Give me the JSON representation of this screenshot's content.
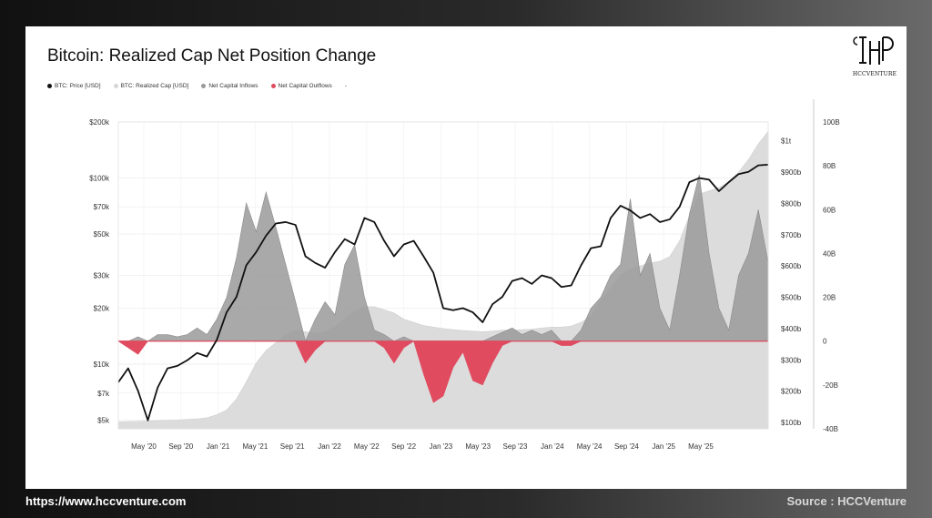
{
  "footer": {
    "website": "https://www.hccventure.com",
    "source": "Source : HCCVenture"
  },
  "logo": {
    "text": "HCCVENTURE"
  },
  "colors": {
    "price": "#111111",
    "realized_cap": "#dcdcdc",
    "inflows": "#9a9a9a",
    "outflows": "#e04b60"
  },
  "chart_data": {
    "type": "line",
    "title": "Bitcoin: Realized Cap Net Position Change",
    "legend": {
      "placement": "top-left",
      "items": [
        {
          "label": "BTC: Price [USD]",
          "color": "#111111"
        },
        {
          "label": "BTC: Realized Cap [USD]",
          "color": "#d6d6d6"
        },
        {
          "label": "Net Capital Inflows",
          "color": "#9a9a9a"
        },
        {
          "label": "Net Capital Outflows",
          "color": "#e04b60"
        },
        {
          "label": "-",
          "color": ""
        }
      ]
    },
    "x_ticks": [
      "May '20",
      "Sep '20",
      "Jan '21",
      "May '21",
      "Sep '21",
      "Jan '22",
      "May '22",
      "Sep '22",
      "Jan '23",
      "May '23",
      "Sep '23",
      "Jan '24",
      "May '24",
      "Sep '24",
      "Jan '25",
      "May '25"
    ],
    "axes": {
      "price": {
        "scale": "log",
        "range": [
          4500,
          200000
        ],
        "ticks": [
          "$5k",
          "$7k",
          "$10k",
          "$20k",
          "$30k",
          "$50k",
          "$70k",
          "$100k",
          "$200k"
        ]
      },
      "realized_cap": {
        "scale": "linear",
        "range": [
          80,
          1060
        ],
        "ticks": [
          "$100b",
          "$200b",
          "$300b",
          "$400b",
          "$500b",
          "$600b",
          "$700b",
          "$800b",
          "$900b",
          "$1t"
        ]
      },
      "net_position_change": {
        "scale": "linear",
        "range": [
          -40,
          100
        ],
        "ticks": [
          "-40B",
          "-20B",
          "0",
          "20B",
          "40B",
          "60B",
          "80B",
          "100B"
        ]
      }
    },
    "grid": "horizontal",
    "series": [
      {
        "name": "BTC: Price [USD]",
        "axis": "price",
        "points": [
          [
            0,
            8000
          ],
          [
            1,
            9500
          ],
          [
            2,
            7200
          ],
          [
            3,
            5000
          ],
          [
            4,
            7500
          ],
          [
            5,
            9500
          ],
          [
            6,
            9800
          ],
          [
            7,
            10500
          ],
          [
            8,
            11500
          ],
          [
            9,
            11000
          ],
          [
            10,
            13500
          ],
          [
            11,
            19000
          ],
          [
            12,
            23000
          ],
          [
            13,
            34000
          ],
          [
            14,
            40000
          ],
          [
            15,
            49000
          ],
          [
            16,
            57000
          ],
          [
            17,
            58000
          ],
          [
            18,
            56000
          ],
          [
            19,
            38000
          ],
          [
            20,
            35000
          ],
          [
            21,
            33000
          ],
          [
            22,
            40000
          ],
          [
            23,
            47000
          ],
          [
            24,
            44000
          ],
          [
            25,
            61000
          ],
          [
            26,
            58000
          ],
          [
            27,
            46000
          ],
          [
            28,
            38000
          ],
          [
            29,
            44000
          ],
          [
            30,
            46000
          ],
          [
            31,
            38000
          ],
          [
            32,
            31000
          ],
          [
            33,
            20000
          ],
          [
            34,
            19500
          ],
          [
            35,
            20000
          ],
          [
            36,
            19000
          ],
          [
            37,
            16800
          ],
          [
            38,
            21000
          ],
          [
            39,
            23000
          ],
          [
            40,
            28000
          ],
          [
            41,
            29000
          ],
          [
            42,
            27000
          ],
          [
            43,
            30000
          ],
          [
            44,
            29000
          ],
          [
            45,
            26000
          ],
          [
            46,
            26500
          ],
          [
            47,
            34000
          ],
          [
            48,
            42000
          ],
          [
            49,
            43000
          ],
          [
            50,
            61000
          ],
          [
            51,
            71000
          ],
          [
            52,
            67000
          ],
          [
            53,
            61000
          ],
          [
            54,
            64000
          ],
          [
            55,
            58000
          ],
          [
            56,
            60000
          ],
          [
            57,
            70000
          ],
          [
            58,
            95000
          ],
          [
            59,
            100000
          ],
          [
            60,
            98000
          ],
          [
            61,
            85000
          ],
          [
            62,
            95000
          ],
          [
            63,
            105000
          ],
          [
            64,
            108000
          ],
          [
            65,
            117000
          ],
          [
            66,
            118000
          ]
        ]
      },
      {
        "name": "BTC: Realized Cap [USD]",
        "axis": "realized_cap",
        "points": [
          [
            0,
            102
          ],
          [
            1,
            103
          ],
          [
            2,
            104
          ],
          [
            3,
            105
          ],
          [
            4,
            106
          ],
          [
            5,
            107
          ],
          [
            6,
            108
          ],
          [
            7,
            110
          ],
          [
            8,
            112
          ],
          [
            9,
            115
          ],
          [
            10,
            125
          ],
          [
            11,
            140
          ],
          [
            12,
            175
          ],
          [
            13,
            230
          ],
          [
            14,
            290
          ],
          [
            15,
            330
          ],
          [
            16,
            355
          ],
          [
            17,
            380
          ],
          [
            18,
            395
          ],
          [
            19,
            390
          ],
          [
            20,
            385
          ],
          [
            21,
            390
          ],
          [
            22,
            405
          ],
          [
            23,
            430
          ],
          [
            24,
            455
          ],
          [
            25,
            470
          ],
          [
            26,
            470
          ],
          [
            27,
            460
          ],
          [
            28,
            450
          ],
          [
            29,
            430
          ],
          [
            30,
            420
          ],
          [
            31,
            410
          ],
          [
            32,
            405
          ],
          [
            33,
            400
          ],
          [
            34,
            397
          ],
          [
            35,
            394
          ],
          [
            36,
            392
          ],
          [
            37,
            390
          ],
          [
            38,
            392
          ],
          [
            39,
            395
          ],
          [
            40,
            395
          ],
          [
            41,
            397
          ],
          [
            42,
            398
          ],
          [
            43,
            402
          ],
          [
            44,
            405
          ],
          [
            45,
            405
          ],
          [
            46,
            408
          ],
          [
            47,
            420
          ],
          [
            48,
            440
          ],
          [
            49,
            490
          ],
          [
            50,
            530
          ],
          [
            51,
            570
          ],
          [
            52,
            590
          ],
          [
            53,
            600
          ],
          [
            54,
            610
          ],
          [
            55,
            615
          ],
          [
            56,
            630
          ],
          [
            57,
            680
          ],
          [
            58,
            760
          ],
          [
            59,
            830
          ],
          [
            60,
            840
          ],
          [
            61,
            850
          ],
          [
            62,
            870
          ],
          [
            63,
            900
          ],
          [
            64,
            940
          ],
          [
            65,
            990
          ],
          [
            66,
            1030
          ]
        ]
      },
      {
        "name": "Net Capital Inflows",
        "axis": "net_position_change",
        "points": [
          [
            0,
            0
          ],
          [
            1,
            0
          ],
          [
            2,
            2
          ],
          [
            3,
            0
          ],
          [
            4,
            3
          ],
          [
            5,
            3
          ],
          [
            6,
            2
          ],
          [
            7,
            3
          ],
          [
            8,
            6
          ],
          [
            9,
            3
          ],
          [
            10,
            10
          ],
          [
            11,
            20
          ],
          [
            12,
            38
          ],
          [
            13,
            63
          ],
          [
            14,
            50
          ],
          [
            15,
            68
          ],
          [
            16,
            52
          ],
          [
            17,
            35
          ],
          [
            18,
            18
          ],
          [
            19,
            0
          ],
          [
            20,
            10
          ],
          [
            21,
            18
          ],
          [
            22,
            12
          ],
          [
            23,
            35
          ],
          [
            24,
            44
          ],
          [
            25,
            20
          ],
          [
            26,
            5
          ],
          [
            27,
            3
          ],
          [
            28,
            0
          ],
          [
            29,
            2
          ],
          [
            30,
            0
          ],
          [
            31,
            0
          ],
          [
            32,
            0
          ],
          [
            33,
            0
          ],
          [
            34,
            0
          ],
          [
            35,
            0
          ],
          [
            36,
            0
          ],
          [
            37,
            0
          ],
          [
            38,
            2
          ],
          [
            39,
            4
          ],
          [
            40,
            6
          ],
          [
            41,
            3
          ],
          [
            42,
            5
          ],
          [
            43,
            3
          ],
          [
            44,
            5
          ],
          [
            45,
            0
          ],
          [
            46,
            0
          ],
          [
            47,
            5
          ],
          [
            48,
            15
          ],
          [
            49,
            20
          ],
          [
            50,
            30
          ],
          [
            51,
            35
          ],
          [
            52,
            65
          ],
          [
            53,
            30
          ],
          [
            54,
            40
          ],
          [
            55,
            15
          ],
          [
            56,
            5
          ],
          [
            57,
            30
          ],
          [
            58,
            58
          ],
          [
            59,
            76
          ],
          [
            60,
            40
          ],
          [
            61,
            15
          ],
          [
            62,
            5
          ],
          [
            63,
            30
          ],
          [
            64,
            40
          ],
          [
            65,
            60
          ],
          [
            66,
            36
          ]
        ]
      },
      {
        "name": "Net Capital Outflows",
        "axis": "net_position_change",
        "points": [
          [
            0,
            0
          ],
          [
            1,
            -3
          ],
          [
            2,
            -6
          ],
          [
            3,
            0
          ],
          [
            4,
            0
          ],
          [
            5,
            0
          ],
          [
            6,
            0
          ],
          [
            7,
            0
          ],
          [
            8,
            0
          ],
          [
            9,
            0
          ],
          [
            10,
            0
          ],
          [
            11,
            0
          ],
          [
            12,
            0
          ],
          [
            13,
            0
          ],
          [
            14,
            0
          ],
          [
            15,
            0
          ],
          [
            16,
            0
          ],
          [
            17,
            0
          ],
          [
            18,
            0
          ],
          [
            19,
            -10
          ],
          [
            20,
            -4
          ],
          [
            21,
            0
          ],
          [
            22,
            0
          ],
          [
            23,
            0
          ],
          [
            24,
            0
          ],
          [
            25,
            0
          ],
          [
            26,
            0
          ],
          [
            27,
            -3
          ],
          [
            28,
            -10
          ],
          [
            29,
            -3
          ],
          [
            30,
            0
          ],
          [
            31,
            -15
          ],
          [
            32,
            -28
          ],
          [
            33,
            -25
          ],
          [
            34,
            -12
          ],
          [
            35,
            -5
          ],
          [
            36,
            -18
          ],
          [
            37,
            -20
          ],
          [
            38,
            -10
          ],
          [
            39,
            -2
          ],
          [
            40,
            0
          ],
          [
            41,
            0
          ],
          [
            42,
            0
          ],
          [
            43,
            0
          ],
          [
            44,
            0
          ],
          [
            45,
            -2
          ],
          [
            46,
            -2
          ],
          [
            47,
            0
          ],
          [
            48,
            0
          ],
          [
            49,
            0
          ],
          [
            50,
            0
          ],
          [
            51,
            0
          ],
          [
            52,
            0
          ],
          [
            53,
            0
          ],
          [
            54,
            0
          ],
          [
            55,
            0
          ],
          [
            56,
            0
          ],
          [
            57,
            0
          ],
          [
            58,
            0
          ],
          [
            59,
            0
          ],
          [
            60,
            0
          ],
          [
            61,
            0
          ],
          [
            62,
            0
          ],
          [
            63,
            0
          ],
          [
            64,
            0
          ],
          [
            65,
            0
          ],
          [
            66,
            0
          ]
        ]
      }
    ]
  }
}
